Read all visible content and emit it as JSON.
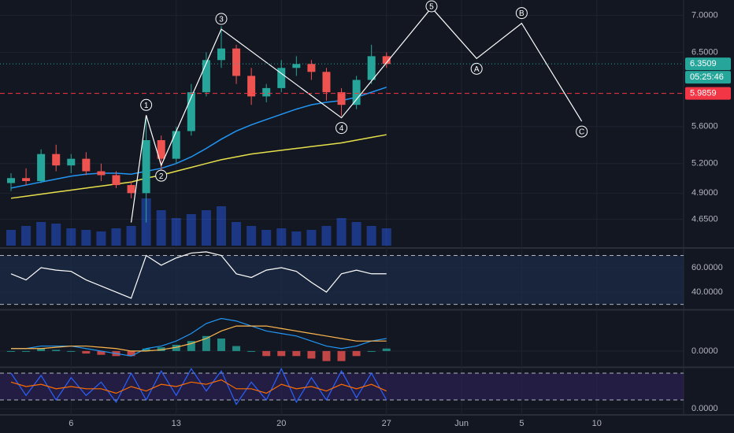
{
  "chart_data": [
    {
      "type": "candlestick",
      "categories": [
        null,
        null,
        null,
        null,
        "6",
        null,
        null,
        null,
        null,
        null,
        null,
        "13",
        null,
        null,
        null,
        null,
        null,
        null,
        "20",
        null,
        null,
        null,
        null,
        null,
        null,
        "27",
        null,
        null,
        null,
        null,
        "Jun",
        null,
        null,
        null,
        "5",
        null,
        null,
        null,
        null,
        "10",
        null,
        null
      ],
      "open": [
        5.0,
        5.05,
        5.02,
        5.3,
        5.18,
        5.25,
        5.12,
        5.08,
        4.98,
        4.9,
        5.45,
        5.25,
        5.55,
        6.0,
        6.4,
        6.55,
        6.2,
        5.95,
        6.05,
        6.3,
        6.35,
        6.25,
        6.0,
        5.85,
        6.15,
        6.45,
        null,
        null,
        null,
        null,
        null,
        null,
        null,
        null,
        null,
        null,
        null,
        null,
        null,
        null,
        null,
        null
      ],
      "high": [
        5.1,
        5.15,
        5.35,
        5.4,
        5.3,
        5.32,
        5.2,
        5.12,
        5.02,
        5.72,
        5.5,
        5.6,
        6.1,
        6.5,
        6.85,
        6.6,
        6.3,
        6.1,
        6.4,
        6.45,
        6.4,
        6.3,
        6.05,
        6.2,
        6.6,
        6.5,
        null,
        null,
        null,
        null,
        null,
        null,
        null,
        null,
        null,
        null,
        null,
        null,
        null,
        null,
        null,
        null
      ],
      "low": [
        4.92,
        4.98,
        5.0,
        5.12,
        5.1,
        5.08,
        5.02,
        4.95,
        4.85,
        4.62,
        5.12,
        5.2,
        5.5,
        5.95,
        6.3,
        6.1,
        5.85,
        5.88,
        6.0,
        6.2,
        6.15,
        5.9,
        5.72,
        5.8,
        6.1,
        6.3,
        null,
        null,
        null,
        null,
        null,
        null,
        null,
        null,
        null,
        null,
        null,
        null,
        null,
        null,
        null,
        null
      ],
      "close": [
        5.05,
        5.02,
        5.3,
        5.18,
        5.25,
        5.12,
        5.08,
        4.98,
        4.9,
        5.45,
        5.25,
        5.55,
        6.0,
        6.4,
        6.55,
        6.2,
        5.95,
        6.05,
        6.3,
        6.35,
        6.25,
        6.0,
        5.85,
        6.15,
        6.45,
        6.35,
        null,
        null,
        null,
        null,
        null,
        null,
        null,
        null,
        null,
        null,
        null,
        null,
        null,
        null,
        null,
        null
      ],
      "up_color": "#26a69a",
      "down_color": "#ef5350",
      "log": true,
      "ylim": [
        4.41,
        7.22
      ],
      "grid": true,
      "yticks": [
        {
          "value": 7,
          "label": "7.0000"
        },
        {
          "value": 6.5,
          "label": "6.5000"
        },
        {
          "value": 5.6,
          "label": "5.6000"
        },
        {
          "value": 5.2,
          "label": "5.2000"
        },
        {
          "value": 4.9,
          "label": "4.9000"
        },
        {
          "value": 4.65,
          "label": "4.6500"
        }
      ],
      "lines": [
        {
          "color": "#e6e04a",
          "values": [
            4.85,
            4.87,
            4.89,
            4.91,
            4.93,
            4.95,
            4.97,
            4.99,
            5.01,
            5.05,
            5.08,
            5.12,
            5.16,
            5.2,
            5.24,
            5.27,
            5.3,
            5.32,
            5.34,
            5.36,
            5.38,
            5.4,
            5.42,
            5.45,
            5.48,
            5.51,
            null,
            null,
            null,
            null,
            null,
            null,
            null,
            null,
            null,
            null,
            null,
            null,
            null,
            null,
            null,
            null
          ]
        },
        {
          "color": "#2196f3",
          "values": [
            4.95,
            4.98,
            5.01,
            5.04,
            5.07,
            5.09,
            5.1,
            5.1,
            5.09,
            5.12,
            5.15,
            5.2,
            5.27,
            5.36,
            5.46,
            5.55,
            5.62,
            5.68,
            5.74,
            5.8,
            5.85,
            5.88,
            5.9,
            5.94,
            6.0,
            6.06,
            null,
            null,
            null,
            null,
            null,
            null,
            null,
            null,
            null,
            null,
            null,
            null,
            null,
            null,
            null,
            null
          ]
        }
      ],
      "volume": {
        "color": "#2962ff",
        "ylim": [
          0,
          100
        ],
        "values": [
          20,
          25,
          30,
          28,
          22,
          20,
          18,
          22,
          25,
          60,
          45,
          35,
          40,
          45,
          50,
          30,
          25,
          20,
          22,
          18,
          20,
          25,
          35,
          30,
          25,
          22,
          null,
          null,
          null,
          null,
          null,
          null,
          null,
          null,
          null,
          null,
          null,
          null,
          null,
          null,
          null,
          null
        ]
      },
      "wave": {
        "color": "#ffffff",
        "points": [
          {
            "x": 8,
            "y": 4.62
          },
          {
            "x": 9,
            "y": 5.73,
            "label": "1"
          },
          {
            "x": 10,
            "y": 5.18,
            "label": "2"
          },
          {
            "x": 14,
            "y": 6.81,
            "label": "3"
          },
          {
            "x": 22,
            "y": 5.7,
            "label": "4"
          },
          {
            "x": 28,
            "y": 7.11,
            "label": "5"
          },
          {
            "x": 31,
            "y": 6.42,
            "label": "A"
          },
          {
            "x": 34,
            "y": 6.89,
            "label": "B"
          },
          {
            "x": 38,
            "y": 5.66,
            "label": "C"
          }
        ]
      },
      "price_lines": [
        {
          "value": 6.3509,
          "color": "#26a69a",
          "countdown": "05:25:46"
        },
        {
          "value": 5.9859,
          "color": "#f23645"
        }
      ]
    },
    {
      "type": "line",
      "values": [
        55,
        50,
        60,
        58,
        57,
        50,
        45,
        40,
        35,
        70,
        62,
        68,
        72,
        73,
        70,
        55,
        52,
        58,
        60,
        57,
        48,
        40,
        55,
        58,
        55,
        55,
        null,
        null,
        null,
        null,
        null,
        null,
        null,
        null,
        null,
        null,
        null,
        null,
        null,
        null,
        null,
        null
      ],
      "color": "#ffffff",
      "ylim": [
        26.5,
        74.2
      ],
      "yticks": [
        {
          "value": 60,
          "label": "60.0000"
        },
        {
          "value": 40,
          "label": "40.0000"
        }
      ],
      "bands": [
        30,
        70
      ],
      "band_color": "#1c2f4f"
    },
    {
      "type": "macd",
      "macd": [
        0.01,
        0.01,
        0.02,
        0.02,
        0.02,
        0.01,
        0,
        -0.01,
        -0.02,
        0.01,
        0.02,
        0.04,
        0.07,
        0.11,
        0.13,
        0.12,
        0.1,
        0.08,
        0.07,
        0.06,
        0.04,
        0.02,
        0.01,
        0.02,
        0.04,
        0.05,
        null,
        null,
        null,
        null,
        null,
        null,
        null,
        null,
        null,
        null,
        null,
        null,
        null,
        null,
        null,
        null
      ],
      "signal": [
        0.01,
        0.01,
        0.01,
        0.015,
        0.02,
        0.02,
        0.015,
        0.01,
        0,
        0,
        0.005,
        0.015,
        0.03,
        0.05,
        0.08,
        0.1,
        0.1,
        0.1,
        0.09,
        0.08,
        0.07,
        0.06,
        0.05,
        0.04,
        0.04,
        0.04,
        null,
        null,
        null,
        null,
        null,
        null,
        null,
        null,
        null,
        null,
        null,
        null,
        null,
        null,
        null,
        null
      ],
      "hist": [
        0,
        0,
        0.01,
        0.005,
        0,
        -0.01,
        -0.015,
        -0.02,
        -0.02,
        0.01,
        0.015,
        0.025,
        0.04,
        0.06,
        0.05,
        0.02,
        0,
        -0.02,
        -0.02,
        -0.02,
        -0.03,
        -0.04,
        -0.04,
        -0.02,
        0,
        0.01,
        null,
        null,
        null,
        null,
        null,
        null,
        null,
        null,
        null,
        null,
        null,
        null,
        null,
        null,
        null,
        null
      ],
      "macd_color": "#2196f3",
      "signal_color": "#ffb74d",
      "up_color": "#26a69a",
      "down_color": "#ef5350",
      "ylim": [
        -0.06,
        0.16
      ],
      "yticks": [
        {
          "value": 0,
          "label": "0.0000"
        }
      ]
    },
    {
      "type": "stoch",
      "series": [
        {
          "color": "#2962ff",
          "values": [
            80,
            30,
            75,
            20,
            70,
            30,
            60,
            15,
            80,
            20,
            85,
            30,
            90,
            40,
            85,
            10,
            60,
            20,
            90,
            15,
            70,
            20,
            85,
            25,
            80,
            20,
            null,
            null,
            null,
            null,
            null,
            null,
            null,
            null,
            null,
            null,
            null,
            null,
            null,
            null,
            null,
            null
          ]
        },
        {
          "color": "#ff6d00",
          "values": [
            60,
            50,
            55,
            45,
            50,
            45,
            45,
            35,
            50,
            40,
            55,
            50,
            60,
            55,
            65,
            45,
            45,
            35,
            55,
            45,
            50,
            40,
            55,
            45,
            55,
            40,
            null,
            null,
            null,
            null,
            null,
            null,
            null,
            null,
            null,
            null,
            null,
            null,
            null,
            null,
            null,
            null
          ]
        }
      ],
      "ylim": [
        -10,
        90.6
      ],
      "yticks": [
        {
          "value": 0,
          "label": "0.0000"
        }
      ],
      "bands": [
        20,
        80
      ],
      "band_color": "#2e1f5a"
    }
  ]
}
